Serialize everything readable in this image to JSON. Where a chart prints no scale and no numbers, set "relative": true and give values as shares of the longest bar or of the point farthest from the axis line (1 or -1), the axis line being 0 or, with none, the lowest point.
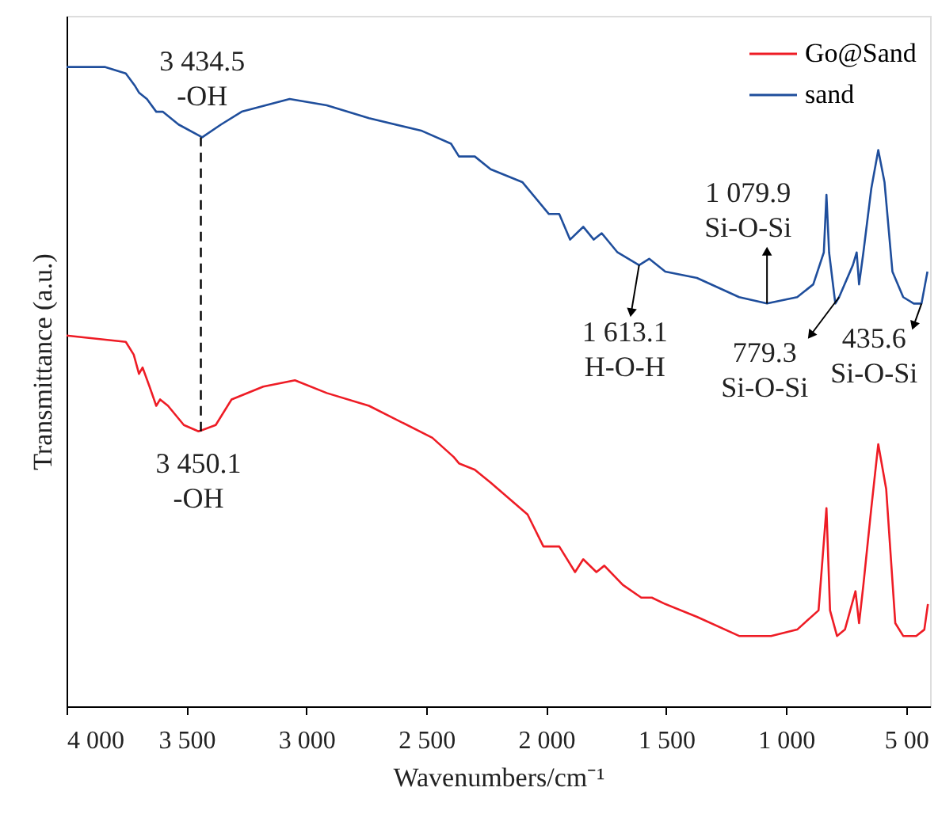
{
  "chart_data": {
    "type": "line",
    "relative": true,
    "xlabel": "Wavenumbers/cm⁻¹",
    "ylabel": "Transmittance (a.u.)",
    "xlim": [
      4000,
      400
    ],
    "xticks": [
      {
        "value": 4000,
        "label": "4 000"
      },
      {
        "value": 3500,
        "label": "3 500"
      },
      {
        "value": 3000,
        "label": "3 000"
      },
      {
        "value": 2500,
        "label": "2 500"
      },
      {
        "value": 2000,
        "label": "2 000"
      },
      {
        "value": 1500,
        "label": "1 500"
      },
      {
        "value": 1000,
        "label": "1 000"
      },
      {
        "value": 500,
        "label": "5 00"
      }
    ],
    "legend": "top right",
    "grid": false,
    "series": [
      {
        "name": "Go@Sand",
        "color": "#ee1c25",
        "x": [
          4000,
          3753,
          3720,
          3698,
          3683,
          3654,
          3626,
          3610,
          3577,
          3511,
          3450,
          3378,
          3312,
          3180,
          3048,
          2915,
          2739,
          2475,
          2386,
          2364,
          2298,
          2232,
          2078,
          2012,
          1946,
          1880,
          1846,
          1791,
          1758,
          1681,
          1604,
          1560,
          1504,
          1372,
          1196,
          1063,
          954,
          865,
          832,
          817,
          788,
          755,
          711,
          696,
          678,
          645,
          616,
          583,
          545,
          512,
          458,
          424,
          409
        ],
        "values": [
          0.58,
          0.57,
          0.55,
          0.52,
          0.53,
          0.5,
          0.47,
          0.48,
          0.47,
          0.44,
          0.43,
          0.44,
          0.48,
          0.5,
          0.51,
          0.49,
          0.47,
          0.42,
          0.39,
          0.38,
          0.37,
          0.35,
          0.3,
          0.25,
          0.25,
          0.21,
          0.23,
          0.21,
          0.22,
          0.19,
          0.17,
          0.17,
          0.16,
          0.14,
          0.11,
          0.11,
          0.12,
          0.15,
          0.31,
          0.15,
          0.11,
          0.12,
          0.18,
          0.13,
          0.19,
          0.31,
          0.41,
          0.34,
          0.13,
          0.11,
          0.11,
          0.12,
          0.16
        ]
      },
      {
        "name": "sand",
        "color": "#1f4e9c",
        "x": [
          4000,
          3841,
          3753,
          3714,
          3698,
          3665,
          3626,
          3599,
          3533,
          3434.5,
          3356,
          3270,
          3070,
          2915,
          2739,
          2518,
          2397,
          2364,
          2298,
          2232,
          2100,
          1989,
          1946,
          1901,
          1846,
          1802,
          1769,
          1703,
          1613.1,
          1571,
          1504,
          1372,
          1196,
          1079.9,
          954,
          887,
          843,
          832,
          821,
          795,
          779.3,
          722,
          706,
          696,
          678,
          645,
          616,
          590,
          557,
          512,
          468,
          435.6,
          411
        ],
        "values": [
          1.0,
          1.0,
          0.99,
          0.97,
          0.96,
          0.95,
          0.93,
          0.93,
          0.91,
          0.89,
          0.91,
          0.93,
          0.95,
          0.94,
          0.92,
          0.9,
          0.88,
          0.86,
          0.86,
          0.84,
          0.82,
          0.77,
          0.77,
          0.73,
          0.75,
          0.73,
          0.74,
          0.71,
          0.69,
          0.7,
          0.68,
          0.67,
          0.64,
          0.63,
          0.64,
          0.66,
          0.71,
          0.8,
          0.71,
          0.63,
          0.64,
          0.69,
          0.71,
          0.66,
          0.71,
          0.81,
          0.87,
          0.82,
          0.68,
          0.64,
          0.63,
          0.63,
          0.68
        ]
      }
    ],
    "ref_lines": [
      {
        "axis": "x",
        "value": 3440,
        "line_style": "dashed",
        "color": "#000000"
      }
    ],
    "annotations": [
      {
        "text": "3 434.5\n-OH",
        "x": 3434.5,
        "y": 0.89
      },
      {
        "text": "3 450.1\n-OH",
        "x": 3450.1,
        "y": 0.43
      },
      {
        "text": "1 613.1\nH-O-H",
        "x": 1613.1,
        "y": 0.69
      },
      {
        "text": "1 079.9\nSi-O-Si",
        "x": 1079.9,
        "y": 0.63
      },
      {
        "text": "779.3\nSi-O-Si",
        "x": 779.3,
        "y": 0.64
      },
      {
        "text": "435.6\nSi-O-Si",
        "x": 435.6,
        "y": 0.63
      }
    ]
  }
}
